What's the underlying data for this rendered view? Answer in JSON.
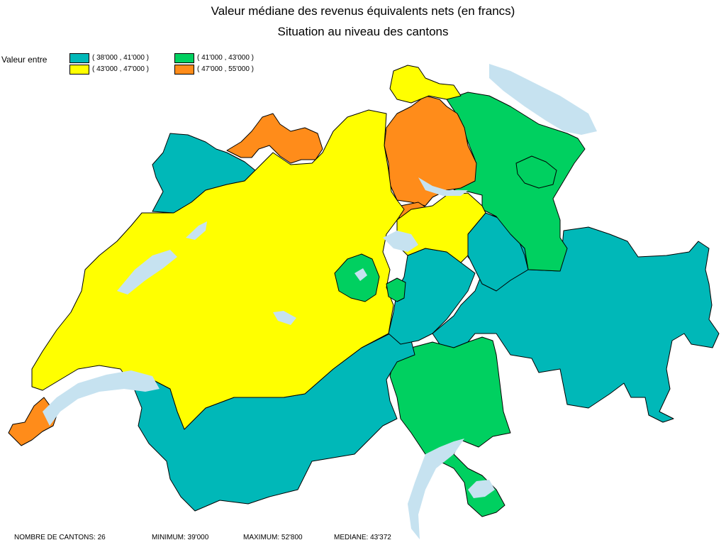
{
  "title": "Valeur médiane des revenus équivalents nets (en francs)",
  "subtitle": "Situation au niveau des cantons",
  "legend": {
    "label": "Valeur entre",
    "items": [
      {
        "text": "( 38'000 , 41'000 )",
        "color": "#00b8b8"
      },
      {
        "text": "( 41'000 , 43'000 )",
        "color": "#00d060"
      },
      {
        "text": "( 43'000 , 47'000 )",
        "color": "#ffff00"
      },
      {
        "text": "( 47'000 , 55'000 )",
        "color": "#ff8c1a"
      }
    ]
  },
  "colors": {
    "lake": "#c6e2f0",
    "border": "#000000"
  },
  "stats": {
    "count": "NOMBRE DE CANTONS: 26",
    "min": "MINIMUM: 39'000",
    "max": "MAXIMUM: 52'800",
    "median": "MEDIANE: 43'372"
  }
}
